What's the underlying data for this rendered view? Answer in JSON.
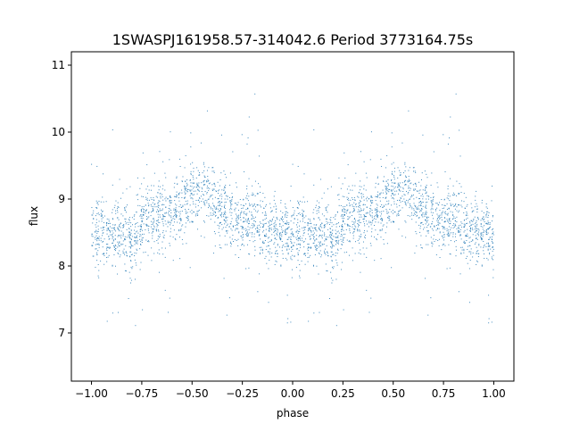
{
  "chart_data": {
    "type": "scatter",
    "title": "1SWASPJ161958.57-314042.6 Period 3773164.75s",
    "xlabel": "phase",
    "ylabel": "flux",
    "xlim": [
      -1.1,
      1.1
    ],
    "ylim": [
      6.28,
      11.2
    ],
    "xticks": [
      -1.0,
      -0.75,
      -0.5,
      -0.25,
      0.0,
      0.25,
      0.5,
      0.75,
      1.0
    ],
    "xtick_labels": [
      "−1.00",
      "−0.75",
      "−0.50",
      "−0.25",
      "0.00",
      "0.25",
      "0.50",
      "0.75",
      "1.00"
    ],
    "yticks": [
      7,
      8,
      9,
      10,
      11
    ],
    "ytick_labels": [
      "7",
      "8",
      "9",
      "10",
      "11"
    ],
    "grid": false,
    "legend": "none",
    "color": "#1f77b4",
    "series": [
      {
        "description": "phase-folded light curve, repeated over two cycles",
        "profile_phase": [
          0.0,
          0.05,
          0.1,
          0.15,
          0.2,
          0.25,
          0.3,
          0.35,
          0.4,
          0.45,
          0.5,
          0.55,
          0.6,
          0.65,
          0.7,
          0.75,
          0.8,
          0.85,
          0.9,
          0.95,
          1.0
        ],
        "profile_flux": [
          8.45,
          8.5,
          8.4,
          8.55,
          8.25,
          8.6,
          8.75,
          8.7,
          8.8,
          8.95,
          9.05,
          9.1,
          9.0,
          8.85,
          8.75,
          8.65,
          8.7,
          8.6,
          8.5,
          8.55,
          8.45
        ],
        "scatter": 0.25,
        "n_points_per_cycle": 1700
      }
    ]
  }
}
